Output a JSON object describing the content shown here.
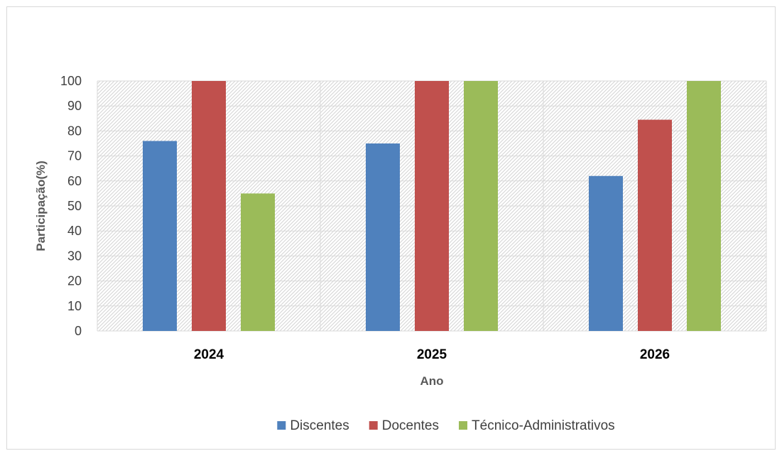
{
  "chart_data": {
    "type": "bar",
    "categories": [
      "2024",
      "2025",
      "2026"
    ],
    "series": [
      {
        "name": "Discentes",
        "values": [
          76,
          75,
          62
        ],
        "color": "#4f81bd"
      },
      {
        "name": "Docentes",
        "values": [
          100,
          100,
          84.5
        ],
        "color": "#c0504d"
      },
      {
        "name": "Técnico-Administrativos",
        "values": [
          55,
          100,
          100
        ],
        "color": "#9bbb59"
      }
    ],
    "title": "",
    "xlabel": "Ano",
    "ylabel": "Participação(%)",
    "ylim": [
      0,
      100
    ],
    "yticks": [
      0,
      10,
      20,
      30,
      40,
      50,
      60,
      70,
      80,
      90,
      100
    ],
    "grid": true,
    "legend": "bottom"
  }
}
